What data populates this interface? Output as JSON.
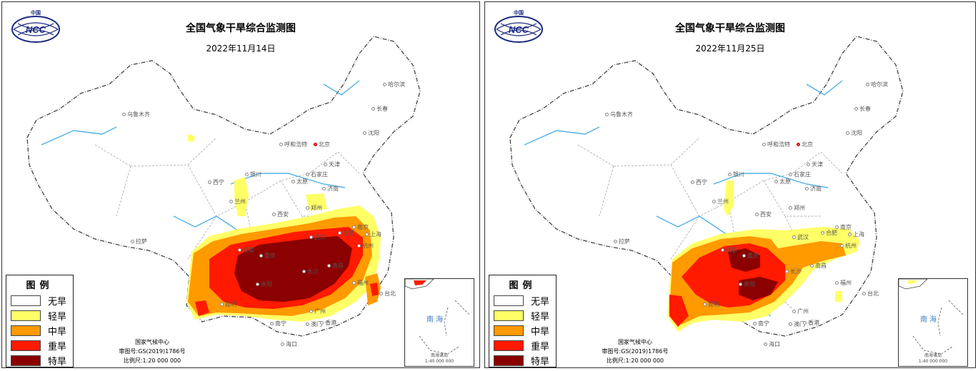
{
  "colors": {
    "none": "#ffffff",
    "light": "#ffff66",
    "moderate": "#ff9a00",
    "severe": "#ff1a00",
    "extreme": "#8b0000",
    "river": "#52b0e8",
    "border": "#444444"
  },
  "maps": [
    {
      "title": "全国气象干旱综合监测图",
      "date": "2022年11月14日",
      "logo_text": "中国",
      "logo_mark": "NCC",
      "cities": [
        "哈尔滨",
        "长春",
        "沈阳",
        "乌鲁木齐",
        "呼和浩特",
        "北京",
        "天津",
        "银川",
        "石家庄",
        "太原",
        "济南",
        "西宁",
        "兰州",
        "郑州",
        "西安",
        "南京",
        "合肥",
        "上海",
        "武汉",
        "杭州",
        "成都",
        "重庆",
        "拉萨",
        "长沙",
        "南昌",
        "贵阳",
        "福州",
        "台北",
        "昆明",
        "南宁",
        "广州",
        "澳门",
        "香港",
        "海口"
      ],
      "legend": {
        "title": "图例",
        "items": [
          {
            "label": "无旱",
            "color": "#ffffff"
          },
          {
            "label": "轻旱",
            "color": "#ffff66"
          },
          {
            "label": "中旱",
            "color": "#ff9a00"
          },
          {
            "label": "重旱",
            "color": "#ff1a00"
          },
          {
            "label": "特旱",
            "color": "#8b0000"
          }
        ]
      },
      "credits": {
        "org": "国家气候中心",
        "approval": "审图号:GS(2019)1786号",
        "scale": "比例尺:1:20 000 000"
      },
      "inset": {
        "label": "南海",
        "caption": "南海诸岛",
        "scale": "1:40 000 000"
      }
    },
    {
      "title": "全国气象干旱综合监测图",
      "date": "2022年11月25日",
      "logo_text": "中国",
      "logo_mark": "NCC",
      "cities": [
        "哈尔滨",
        "长春",
        "沈阳",
        "乌鲁木齐",
        "呼和浩特",
        "北京",
        "天津",
        "银川",
        "石家庄",
        "太原",
        "济南",
        "西宁",
        "兰州",
        "郑州",
        "西安",
        "南京",
        "合肥",
        "上海",
        "武汉",
        "杭州",
        "成都",
        "重庆",
        "拉萨",
        "长沙",
        "南昌",
        "贵阳",
        "福州",
        "台北",
        "昆明",
        "南宁",
        "广州",
        "澳门",
        "香港",
        "海口"
      ],
      "legend": {
        "title": "图例",
        "items": [
          {
            "label": "无旱",
            "color": "#ffffff"
          },
          {
            "label": "轻旱",
            "color": "#ffff66"
          },
          {
            "label": "中旱",
            "color": "#ff9a00"
          },
          {
            "label": "重旱",
            "color": "#ff1a00"
          },
          {
            "label": "特旱",
            "color": "#8b0000"
          }
        ]
      },
      "credits": {
        "org": "国家气候中心",
        "approval": "审图号:GS(2019)1786号",
        "scale": "比例尺:1:20 000 000"
      },
      "inset": {
        "label": "南海",
        "caption": "南海诸岛",
        "scale": "1:40 000 000"
      }
    }
  ]
}
